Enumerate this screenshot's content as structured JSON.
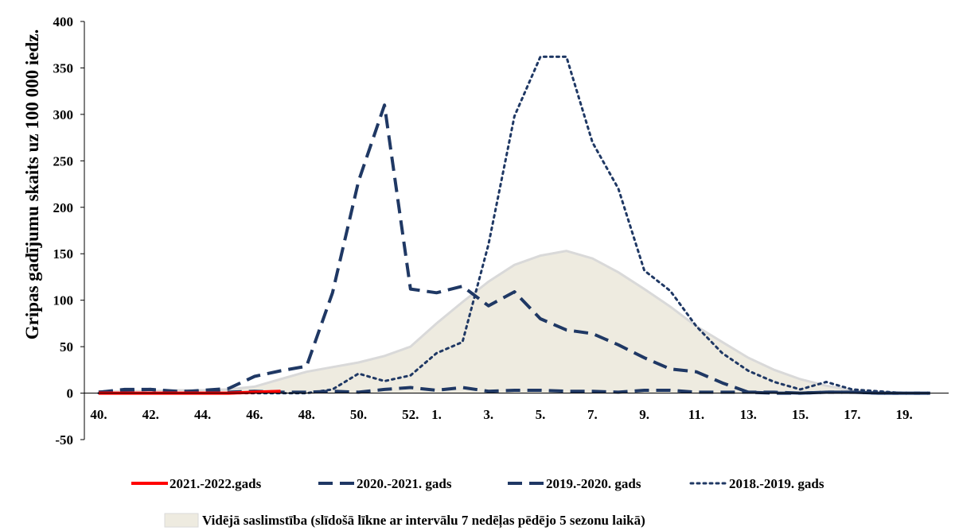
{
  "chart_data": {
    "type": "line",
    "title": "",
    "xlabel": "",
    "ylabel": "Gripas gadījumu skaits uz 100 000 iedz.",
    "ylim": [
      -50,
      400
    ],
    "yticks": [
      "-50",
      "0",
      "50",
      "100",
      "150",
      "200",
      "250",
      "300",
      "350",
      "400"
    ],
    "categories": [
      "40.",
      "41.",
      "42.",
      "43.",
      "44.",
      "45.",
      "46.",
      "47.",
      "48.",
      "49.",
      "50.",
      "51.",
      "52.",
      "1.",
      "2.",
      "3.",
      "4.",
      "5.",
      "6.",
      "7.",
      "8.",
      "9.",
      "10.",
      "11.",
      "12.",
      "13.",
      "14.",
      "15.",
      "16.",
      "17.",
      "18.",
      "19.",
      "20."
    ],
    "xtick_labels": [
      "40.",
      "42.",
      "44.",
      "46.",
      "48.",
      "50.",
      "52.",
      "1.",
      "3.",
      "5.",
      "7.",
      "9.",
      "11.",
      "13.",
      "15.",
      "17.",
      "19."
    ],
    "grid": false,
    "legend_position": "bottom",
    "area": {
      "name": "Vidējā saslimstība (slīdošā līkne ar intervālu 7 nedēļas pēdējo 5 sezonu laikā)",
      "values": [
        1,
        2,
        2,
        3,
        3,
        4,
        7,
        15,
        23,
        28,
        33,
        40,
        50,
        75,
        98,
        120,
        138,
        148,
        153,
        145,
        130,
        112,
        93,
        72,
        55,
        38,
        25,
        15,
        8,
        3,
        1,
        0.5,
        0
      ],
      "fill": "#eeebe0",
      "stroke": "#d9d9d9"
    },
    "series": [
      {
        "name": "2021.-2022.gads",
        "color": "#ff0000",
        "dash": "solid",
        "values": [
          0,
          0,
          0,
          0,
          0,
          0,
          1,
          2,
          null,
          null,
          null,
          null,
          null,
          null,
          null,
          null,
          null,
          null,
          null,
          null,
          null,
          null,
          null,
          null,
          null,
          null,
          null,
          null,
          null,
          null,
          null,
          null,
          null
        ]
      },
      {
        "name": "2020.-2021. gads",
        "color": "#1f3864",
        "dash": "dash",
        "values": [
          1,
          4,
          4,
          2,
          2,
          1,
          2,
          1,
          1,
          2,
          1,
          4,
          6,
          3,
          6,
          2,
          3,
          3,
          2,
          2,
          1,
          3,
          3,
          1,
          1,
          1,
          1,
          0,
          1,
          1,
          0,
          0,
          0
        ]
      },
      {
        "name": "2019.-2020. gads",
        "color": "#1f3864",
        "dash": "dash",
        "values": [
          1,
          3,
          4,
          1,
          3,
          5,
          18,
          24,
          29,
          108,
          228,
          310,
          112,
          108,
          115,
          94,
          109,
          80,
          68,
          64,
          52,
          38,
          26,
          23,
          11,
          1,
          0,
          0,
          1,
          1,
          0,
          0,
          0
        ]
      },
      {
        "name": "2018.-2019. gads",
        "color": "#1f3864",
        "dash": "dot",
        "values": [
          0,
          0,
          0,
          0,
          0,
          0,
          0,
          0,
          0,
          4,
          21,
          13,
          19,
          43,
          55,
          160,
          298,
          362,
          362,
          270,
          220,
          132,
          110,
          72,
          43,
          24,
          12,
          4,
          12,
          4,
          2,
          0,
          0
        ]
      }
    ]
  }
}
